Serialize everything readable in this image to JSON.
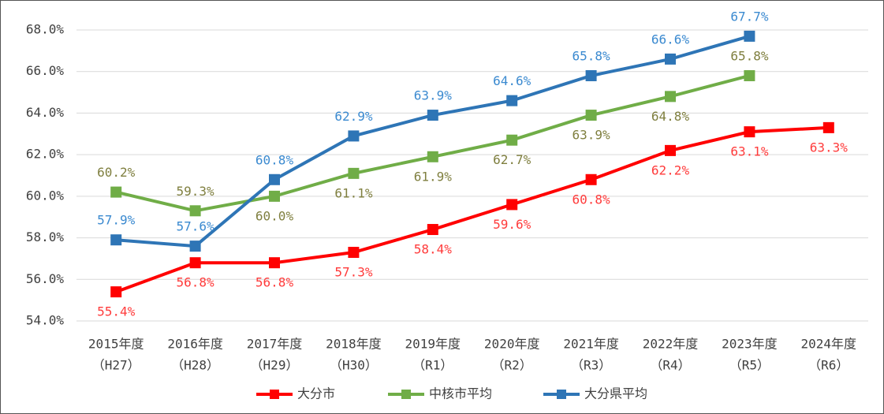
{
  "chart_data": {
    "type": "line",
    "categories": [
      [
        "2015年度",
        "（H27）"
      ],
      [
        "2016年度",
        "（H28）"
      ],
      [
        "2017年度",
        "（H29）"
      ],
      [
        "2018年度",
        "（H30）"
      ],
      [
        "2019年度",
        "（R1）"
      ],
      [
        "2020年度",
        "（R2）"
      ],
      [
        "2021年度",
        "（R3）"
      ],
      [
        "2022年度",
        "（R4）"
      ],
      [
        "2023年度",
        "（R5）"
      ],
      [
        "2024年度",
        "（R6）"
      ]
    ],
    "ylim": [
      54,
      68
    ],
    "yticks": [
      {
        "value": 54,
        "label": "54.0%"
      },
      {
        "value": 56,
        "label": "56.0%"
      },
      {
        "value": 58,
        "label": "58.0%"
      },
      {
        "value": 60,
        "label": "60.0%"
      },
      {
        "value": 62,
        "label": "62.0%"
      },
      {
        "value": 64,
        "label": "64.0%"
      },
      {
        "value": 66,
        "label": "66.0%"
      },
      {
        "value": 68,
        "label": "68.0%"
      }
    ],
    "grid": true,
    "legend": "bottom",
    "series": [
      {
        "name": "大分市",
        "color": "#ff0000",
        "label_color": "#ff3b3b",
        "values": [
          55.4,
          56.8,
          56.8,
          57.3,
          58.4,
          59.6,
          60.8,
          62.2,
          63.1,
          63.3
        ],
        "value_labels": [
          "55.4%",
          "56.8%",
          "56.8%",
          "57.3%",
          "58.4%",
          "59.6%",
          "60.8%",
          "62.2%",
          "63.1%",
          "63.3%"
        ]
      },
      {
        "name": "中核市平均",
        "color": "#70ad47",
        "label_color": "#7f7f3f",
        "values": [
          60.2,
          59.3,
          60.0,
          61.1,
          61.9,
          62.7,
          63.9,
          64.8,
          65.8,
          null
        ],
        "value_labels": [
          "60.2%",
          "59.3%",
          "60.0%",
          "61.1%",
          "61.9%",
          "62.7%",
          "63.9%",
          "64.8%",
          "65.8%",
          null
        ]
      },
      {
        "name": "大分県平均",
        "color": "#2e75b6",
        "label_color": "#3b8ad0",
        "values": [
          57.9,
          57.6,
          60.8,
          62.9,
          63.9,
          64.6,
          65.8,
          66.6,
          67.7,
          null
        ],
        "value_labels": [
          "57.9%",
          "57.6%",
          "60.8%",
          "62.9%",
          "63.9%",
          "64.6%",
          "65.8%",
          "66.6%",
          "67.7%",
          null
        ]
      }
    ]
  }
}
